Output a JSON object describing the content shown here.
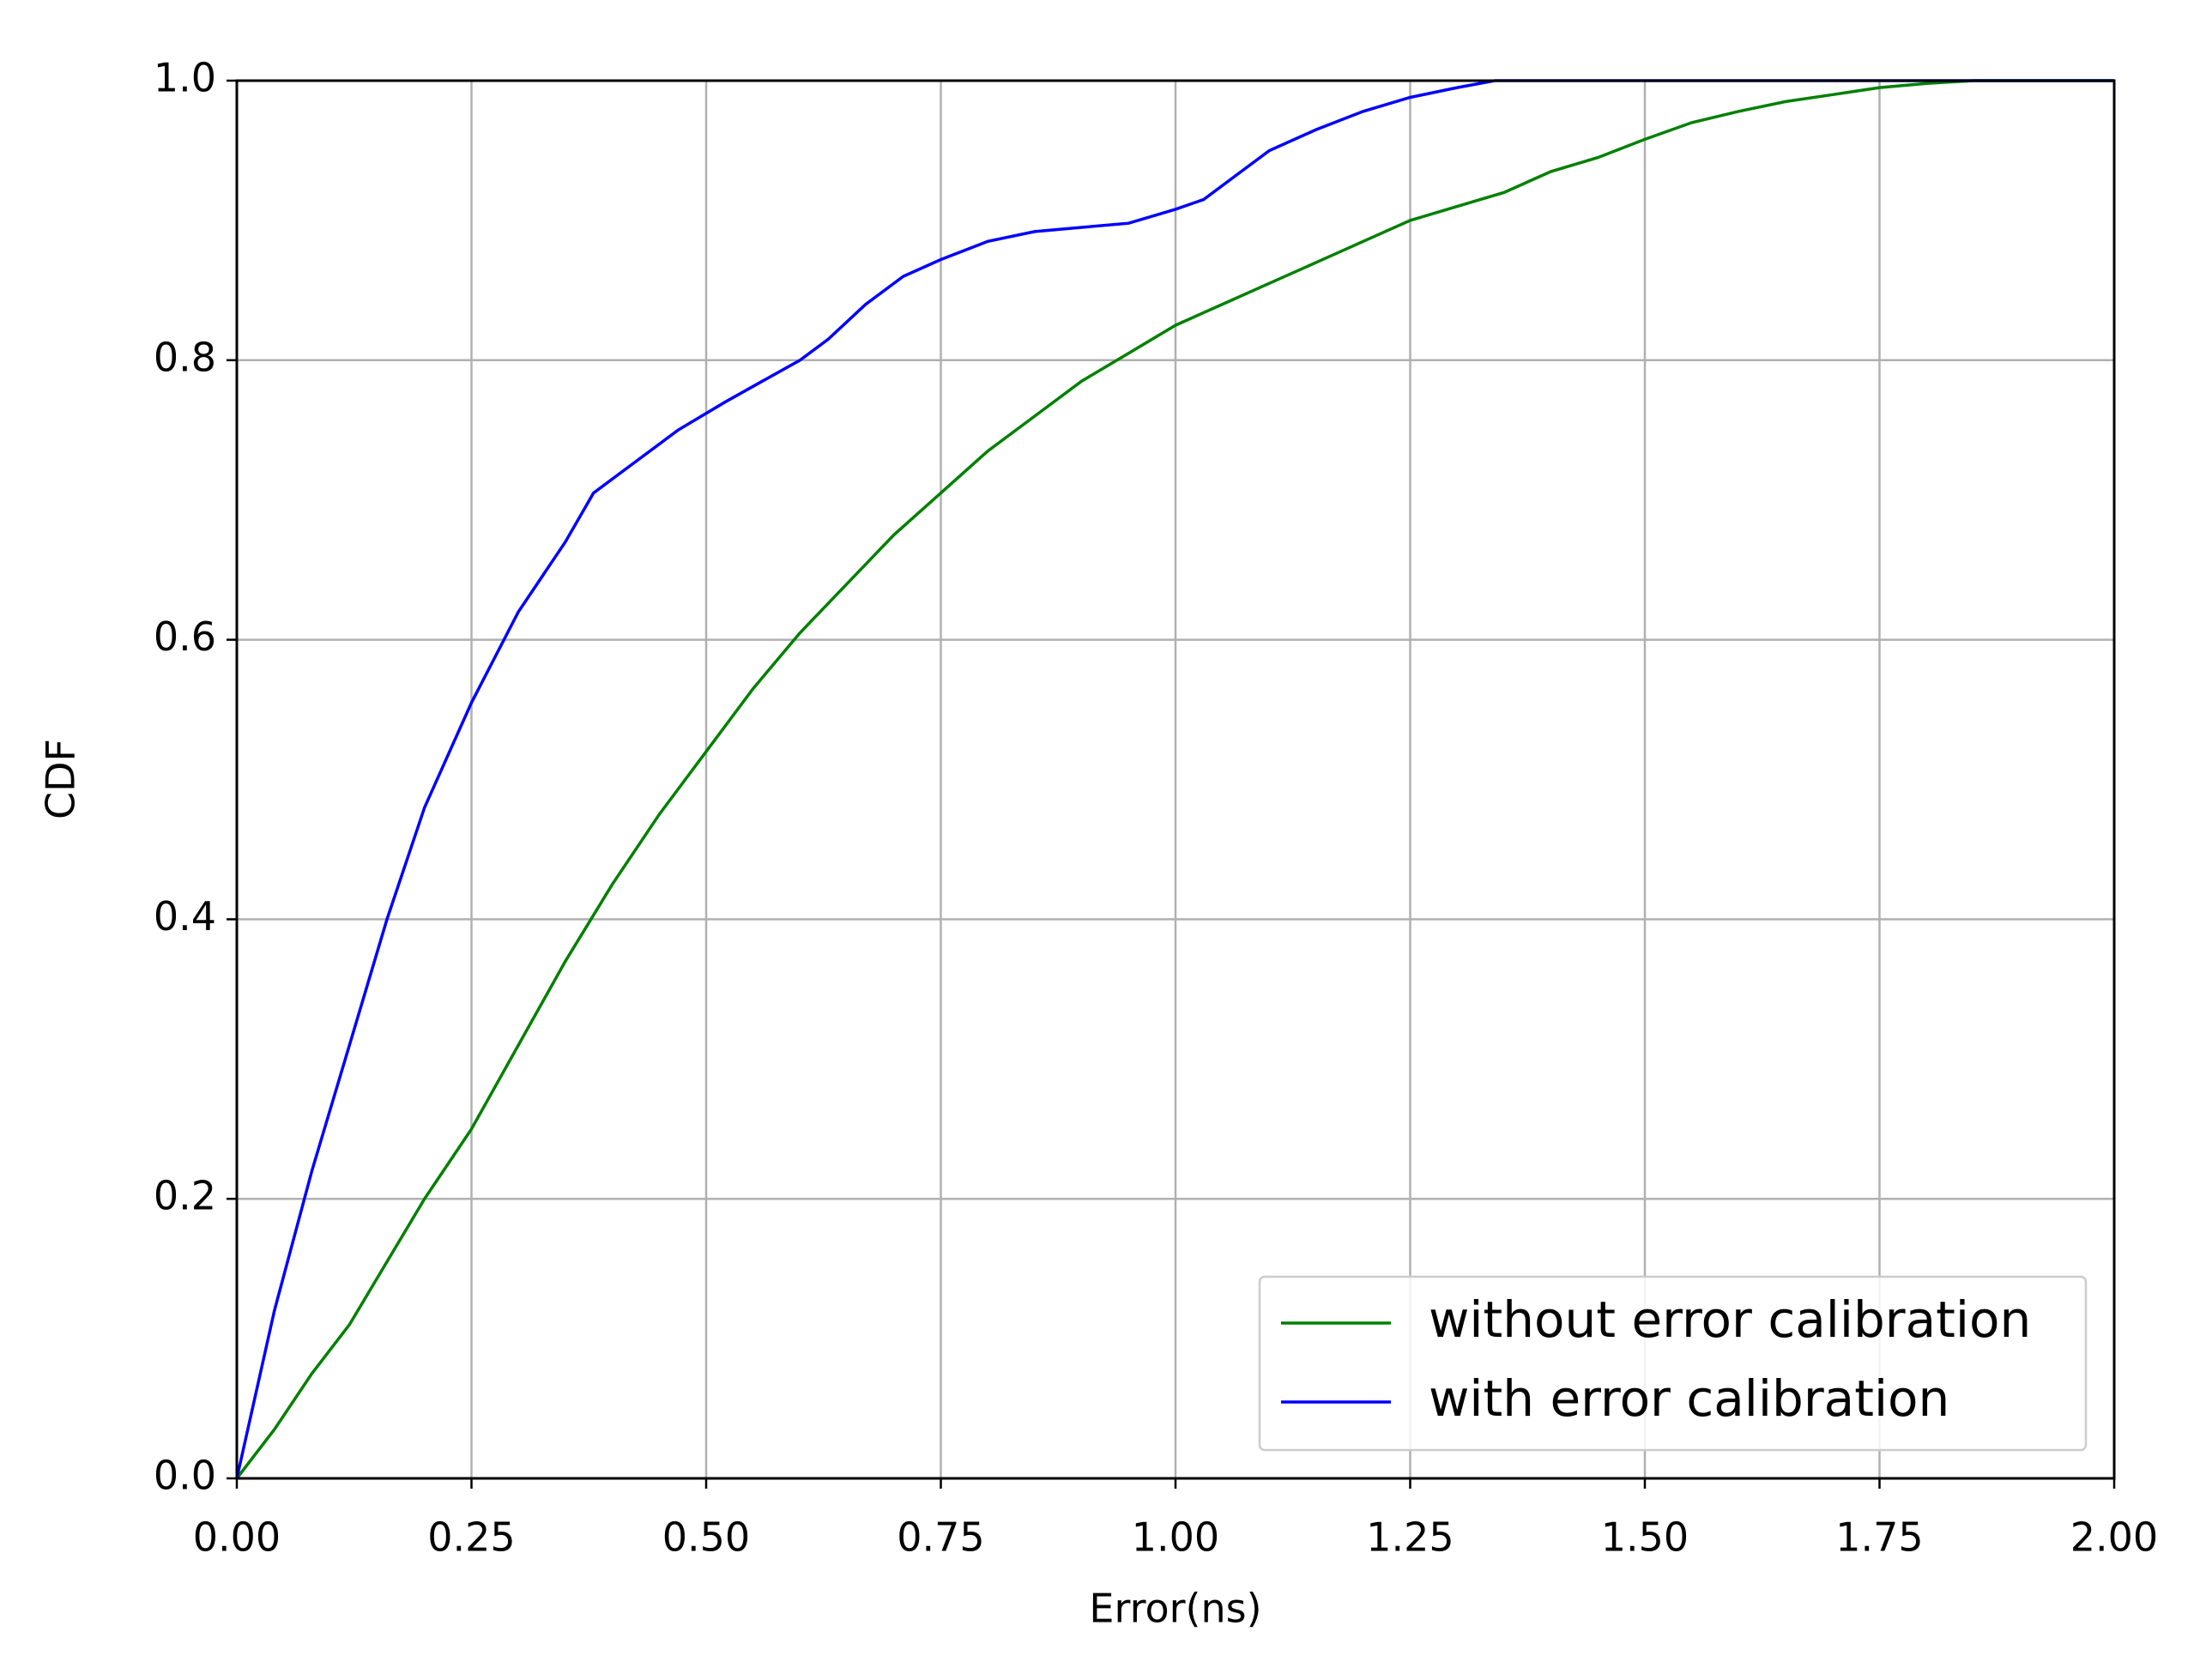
{
  "chart_data": {
    "type": "line",
    "x_label": "Error(ns)",
    "y_label": "CDF",
    "xlim": [
      0,
      2
    ],
    "ylim": [
      0,
      1
    ],
    "xticks": [
      {
        "value": 0,
        "label": "0.00"
      },
      {
        "value": 0.25,
        "label": "0.25"
      },
      {
        "value": 0.5,
        "label": "0.50"
      },
      {
        "value": 0.75,
        "label": "0.75"
      },
      {
        "value": 1,
        "label": "1.00"
      },
      {
        "value": 1.25,
        "label": "1.25"
      },
      {
        "value": 1.5,
        "label": "1.50"
      },
      {
        "value": 1.75,
        "label": "1.75"
      },
      {
        "value": 2,
        "label": "2.00"
      }
    ],
    "yticks": [
      {
        "value": 0,
        "label": "0.0"
      },
      {
        "value": 0.2,
        "label": "0.2"
      },
      {
        "value": 0.4,
        "label": "0.4"
      },
      {
        "value": 0.6,
        "label": "0.6"
      },
      {
        "value": 0.8,
        "label": "0.8"
      },
      {
        "value": 1,
        "label": "1.0"
      }
    ],
    "grid": true,
    "legend": "lower right",
    "series": [
      {
        "name": "without error calibration",
        "color": "#008000",
        "x": [
          0,
          0.04,
          0.08,
          0.12,
          0.16,
          0.2,
          0.25,
          0.3,
          0.35,
          0.4,
          0.45,
          0.5,
          0.55,
          0.6,
          0.65,
          0.7,
          0.75,
          0.8,
          0.85,
          0.9,
          0.95,
          1.0,
          1.05,
          1.1,
          1.15,
          1.2,
          1.25,
          1.3,
          1.35,
          1.4,
          1.45,
          1.5,
          1.55,
          1.6,
          1.65,
          1.7,
          1.75,
          1.8,
          1.85,
          1.9,
          2.0
        ],
        "values": [
          0,
          0.035,
          0.075,
          0.11,
          0.155,
          0.2,
          0.25,
          0.31,
          0.37,
          0.425,
          0.475,
          0.52,
          0.565,
          0.605,
          0.64,
          0.675,
          0.705,
          0.735,
          0.76,
          0.785,
          0.805,
          0.825,
          0.84,
          0.855,
          0.87,
          0.885,
          0.9,
          0.91,
          0.92,
          0.935,
          0.945,
          0.958,
          0.97,
          0.978,
          0.985,
          0.99,
          0.995,
          0.998,
          1.0,
          1.0,
          1.0
        ]
      },
      {
        "name": "with error calibration",
        "color": "#0000ff",
        "x": [
          0,
          0.04,
          0.08,
          0.12,
          0.16,
          0.2,
          0.25,
          0.3,
          0.35,
          0.38,
          0.42,
          0.47,
          0.52,
          0.56,
          0.6,
          0.63,
          0.67,
          0.71,
          0.75,
          0.8,
          0.85,
          0.9,
          0.95,
          1.0,
          1.03,
          1.07,
          1.1,
          1.15,
          1.2,
          1.25,
          1.3,
          1.34,
          1.4,
          1.5,
          2.0
        ],
        "values": [
          0,
          0.12,
          0.22,
          0.31,
          0.4,
          0.48,
          0.555,
          0.62,
          0.67,
          0.705,
          0.725,
          0.75,
          0.77,
          0.785,
          0.8,
          0.815,
          0.84,
          0.86,
          0.872,
          0.885,
          0.892,
          0.895,
          0.898,
          0.908,
          0.915,
          0.935,
          0.95,
          0.965,
          0.978,
          0.988,
          0.995,
          1.0,
          1.0,
          1.0,
          1.0
        ]
      }
    ]
  }
}
